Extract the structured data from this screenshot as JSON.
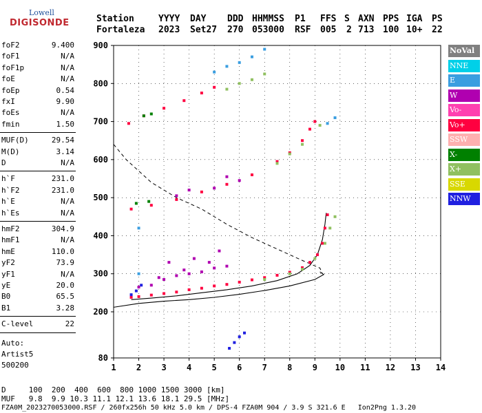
{
  "logo": {
    "line1": "Lowell",
    "line2": "DIGISONDE"
  },
  "header": {
    "labels": [
      "Station",
      "YYYY",
      "DAY",
      "DDD",
      "HHMMSS",
      "P1",
      "FFS",
      "S",
      "AXN",
      "PPS",
      "IGA",
      "PS"
    ],
    "values": [
      "Fortaleza",
      "2023",
      "Set27",
      "270",
      "053000",
      "RSF",
      "005",
      "2",
      "713",
      "100",
      "10+",
      "22"
    ]
  },
  "params": {
    "group1": [
      {
        "k": "foF2",
        "v": "9.400"
      },
      {
        "k": "foF1",
        "v": "N/A"
      },
      {
        "k": "foF1p",
        "v": "N/A"
      },
      {
        "k": "foE",
        "v": "N/A"
      },
      {
        "k": "foEp",
        "v": "0.54"
      },
      {
        "k": "fxI",
        "v": "9.90"
      },
      {
        "k": "foEs",
        "v": "N/A"
      },
      {
        "k": "fmin",
        "v": "1.50"
      }
    ],
    "group2": [
      {
        "k": "MUF(D)",
        "v": "29.54"
      },
      {
        "k": "M(D)",
        "v": "3.14"
      },
      {
        "k": "D",
        "v": "N/A"
      }
    ],
    "group3": [
      {
        "k": "h`F",
        "v": "231.0"
      },
      {
        "k": "h`F2",
        "v": "231.0"
      },
      {
        "k": "h`E",
        "v": "N/A"
      },
      {
        "k": "h`Es",
        "v": "N/A"
      }
    ],
    "group4": [
      {
        "k": "hmF2",
        "v": "304.9"
      },
      {
        "k": "hmF1",
        "v": "N/A"
      },
      {
        "k": "hmE",
        "v": "110.0"
      },
      {
        "k": "yF2",
        "v": "73.9"
      },
      {
        "k": "yF1",
        "v": "N/A"
      },
      {
        "k": "yE",
        "v": "20.0"
      },
      {
        "k": "B0",
        "v": "65.5"
      },
      {
        "k": "B1",
        "v": "3.28"
      }
    ],
    "group5": [
      {
        "k": "C-level",
        "v": "22"
      }
    ],
    "auto": [
      "Auto:",
      "Artist5",
      "500200"
    ]
  },
  "legend": [
    {
      "label": "NoVal",
      "color": "#808080"
    },
    {
      "label": "NNE",
      "color": "#00d0e8"
    },
    {
      "label": "E",
      "color": "#3a9ee0"
    },
    {
      "label": "W",
      "color": "#b000b0"
    },
    {
      "label": "Vo-",
      "color": "#ff40b0"
    },
    {
      "label": "Vo+",
      "color": "#ff0040"
    },
    {
      "label": "SSW",
      "color": "#ffb0b0"
    },
    {
      "label": "X-",
      "color": "#008000"
    },
    {
      "label": "X+",
      "color": "#90c060"
    },
    {
      "label": "SSE",
      "color": "#d8d800"
    },
    {
      "label": "NNW",
      "color": "#2020e0"
    }
  ],
  "chart_data": {
    "type": "scatter",
    "xlim": [
      1,
      14
    ],
    "ylim": [
      80,
      900
    ],
    "x_ticks": [
      "1",
      "2",
      "3",
      "4",
      "5",
      "6",
      "7",
      "8",
      "9",
      "10",
      "11",
      "12",
      "13",
      "14"
    ],
    "y_ticks": [
      "80",
      "200",
      "300",
      "400",
      "500",
      "600",
      "700",
      "800",
      "900"
    ],
    "grid": true,
    "series": [
      {
        "name": "Vo+",
        "color": "#ff0040",
        "points": [
          [
            1.7,
            238
          ],
          [
            2.0,
            240
          ],
          [
            2.5,
            244
          ],
          [
            3.0,
            248
          ],
          [
            3.5,
            252
          ],
          [
            4.0,
            258
          ],
          [
            4.5,
            262
          ],
          [
            5.0,
            268
          ],
          [
            5.5,
            272
          ],
          [
            6.0,
            278
          ],
          [
            6.5,
            284
          ],
          [
            7.0,
            290
          ],
          [
            7.5,
            296
          ],
          [
            8.0,
            304
          ],
          [
            8.5,
            316
          ],
          [
            8.8,
            330
          ],
          [
            9.1,
            350
          ],
          [
            9.3,
            380
          ],
          [
            9.4,
            420
          ],
          [
            9.5,
            455
          ],
          [
            1.7,
            470
          ],
          [
            2.5,
            480
          ],
          [
            3.5,
            495
          ],
          [
            4.5,
            515
          ],
          [
            5.5,
            535
          ],
          [
            6.5,
            560
          ],
          [
            7.5,
            595
          ],
          [
            8.0,
            618
          ],
          [
            8.5,
            650
          ],
          [
            8.8,
            680
          ],
          [
            9.0,
            700
          ],
          [
            1.6,
            695
          ],
          [
            2.2,
            715
          ],
          [
            3.0,
            735
          ],
          [
            3.8,
            755
          ],
          [
            4.5,
            775
          ],
          [
            5.0,
            790
          ]
        ]
      },
      {
        "name": "W",
        "color": "#b000b0",
        "points": [
          [
            2.0,
            265
          ],
          [
            2.5,
            270
          ],
          [
            3.0,
            285
          ],
          [
            3.5,
            295
          ],
          [
            4.0,
            300
          ],
          [
            4.5,
            305
          ],
          [
            5.0,
            315
          ],
          [
            5.5,
            320
          ],
          [
            3.2,
            330
          ],
          [
            4.2,
            340
          ],
          [
            3.8,
            310
          ],
          [
            2.8,
            290
          ],
          [
            4.8,
            330
          ],
          [
            5.2,
            360
          ],
          [
            3.5,
            505
          ],
          [
            4.0,
            520
          ],
          [
            5.0,
            525
          ],
          [
            5.5,
            555
          ],
          [
            6.0,
            545
          ]
        ]
      },
      {
        "name": "X+",
        "color": "#90c060",
        "points": [
          [
            7.0,
            285
          ],
          [
            8.0,
            300
          ],
          [
            8.5,
            312
          ],
          [
            9.0,
            340
          ],
          [
            9.4,
            380
          ],
          [
            9.6,
            420
          ],
          [
            9.8,
            450
          ],
          [
            7.5,
            590
          ],
          [
            8.0,
            615
          ],
          [
            8.5,
            640
          ],
          [
            9.2,
            690
          ],
          [
            5.5,
            785
          ],
          [
            6.0,
            800
          ],
          [
            6.5,
            810
          ],
          [
            7.0,
            825
          ]
        ]
      },
      {
        "name": "E",
        "color": "#3a9ee0",
        "points": [
          [
            5.0,
            830
          ],
          [
            5.5,
            845
          ],
          [
            6.0,
            855
          ],
          [
            6.5,
            870
          ],
          [
            7.0,
            890
          ],
          [
            9.5,
            695
          ],
          [
            9.8,
            710
          ],
          [
            2.0,
            420
          ],
          [
            2.0,
            300
          ]
        ]
      },
      {
        "name": "NNW",
        "color": "#2020e0",
        "points": [
          [
            1.7,
            245
          ],
          [
            1.9,
            255
          ],
          [
            2.1,
            270
          ],
          [
            5.6,
            105
          ],
          [
            5.8,
            120
          ],
          [
            6.0,
            135
          ],
          [
            6.2,
            145
          ]
        ]
      },
      {
        "name": "X-",
        "color": "#008000",
        "points": [
          [
            2.2,
            715
          ],
          [
            2.5,
            720
          ],
          [
            1.9,
            485
          ],
          [
            2.4,
            490
          ]
        ]
      }
    ]
  },
  "footer": {
    "line1": "D     100  200  400  600  800 1000 1500 3000 [km]",
    "line2": "MUF   9.8  9.9 10.3 11.1 12.1 13.6 18.1 29.5 [MHz]",
    "line3": "FZA0M_2023270053000.RSF / 260fx256h 50 kHz 5.0 km / DPS-4 FZA0M 904 / 3.9 S 321.6 E   Ion2Png 1.3.20"
  }
}
